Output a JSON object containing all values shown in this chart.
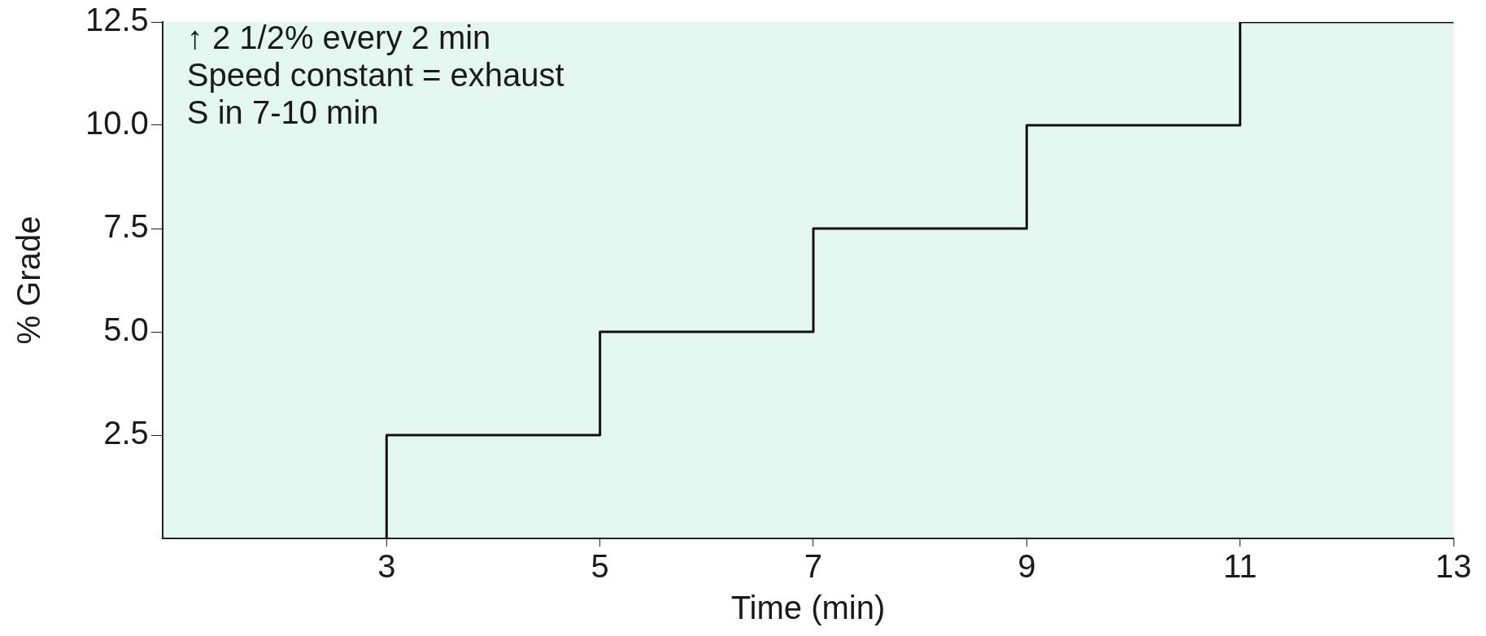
{
  "chart_data": {
    "type": "step",
    "xlabel": "Time (min)",
    "ylabel": "% Grade",
    "x": [
      3,
      3,
      5,
      7,
      9,
      11,
      13
    ],
    "series": [
      {
        "color": "#111111",
        "values": [
          0,
          2.5,
          5,
          7.5,
          10,
          12.5,
          12.5
        ]
      }
    ],
    "xlim": [
      0.9,
      13
    ],
    "xticks": [
      3,
      5,
      7,
      9,
      11,
      13
    ],
    "ylim": [
      0,
      12.5
    ],
    "yticks": [
      2.5,
      {
        "value": 5,
        "label": "5.0"
      },
      7.5,
      {
        "value": 10,
        "label": "10.0"
      },
      12.5
    ],
    "grid": false,
    "legend": false,
    "marker": "none",
    "line_style": "solid",
    "annotations": [
      "↑ 2 1/2% every 2 min",
      "Speed constant = exhaust",
      "S in 7-10 min"
    ]
  }
}
